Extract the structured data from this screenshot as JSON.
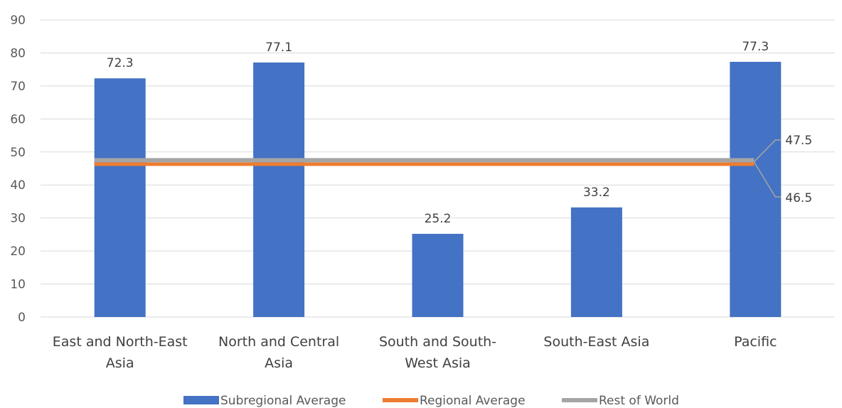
{
  "chart_data": {
    "type": "bar",
    "categories": [
      [
        "East and North-East",
        "Asia"
      ],
      [
        "North and Central",
        "Asia"
      ],
      [
        "South and South-",
        "West Asia"
      ],
      [
        "South-East Asia"
      ],
      [
        "Pacific"
      ]
    ],
    "series": [
      {
        "name": "Subregional Average",
        "type": "bar",
        "color": "#4472C4",
        "values": [
          72.3,
          77.1,
          25.2,
          33.2,
          77.3
        ]
      },
      {
        "name": "Regional Average",
        "type": "line",
        "color": "#ED7D31",
        "value": 46.5
      },
      {
        "name": "Rest of World",
        "type": "line",
        "color": "#A5A5A5",
        "value": 47.5
      }
    ],
    "ylim": [
      0,
      90
    ],
    "yticks": [
      "0",
      "10",
      "20",
      "30",
      "40",
      "50",
      "60",
      "70",
      "80",
      "90"
    ],
    "bar_labels": [
      "72.3",
      "77.1",
      "25.2",
      "33.2",
      "77.3"
    ],
    "line_labels": {
      "regional": "46.5",
      "rest": "47.5"
    },
    "grid": true,
    "legend_position": "bottom"
  }
}
